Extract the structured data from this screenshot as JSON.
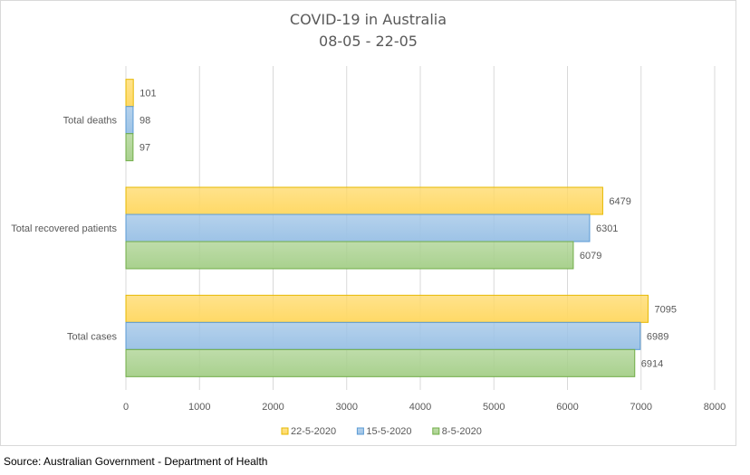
{
  "chart_data": {
    "type": "bar",
    "orientation": "horizontal",
    "title": "COVID-19 in Australia",
    "subtitle": "08-05 - 22-05",
    "categories": [
      "Total deaths",
      "Total recovered patients",
      "Total cases"
    ],
    "series": [
      {
        "name": "22-5-2020",
        "values": [
          101,
          6479,
          7095
        ],
        "color": "#ffd966",
        "edge": "#e6b800"
      },
      {
        "name": "15-5-2020",
        "values": [
          98,
          6301,
          6989
        ],
        "color": "#9dc3e6",
        "edge": "#5b9bd5"
      },
      {
        "name": "8-5-2020",
        "values": [
          97,
          6079,
          6914
        ],
        "color": "#a9d18e",
        "edge": "#70ad47"
      }
    ],
    "xlim": [
      0,
      8000
    ],
    "xticks": [
      0,
      1000,
      2000,
      3000,
      4000,
      5000,
      6000,
      7000,
      8000
    ],
    "grid": true,
    "legend_position": "bottom"
  },
  "source": "Source: Australian Government - Department of Health"
}
